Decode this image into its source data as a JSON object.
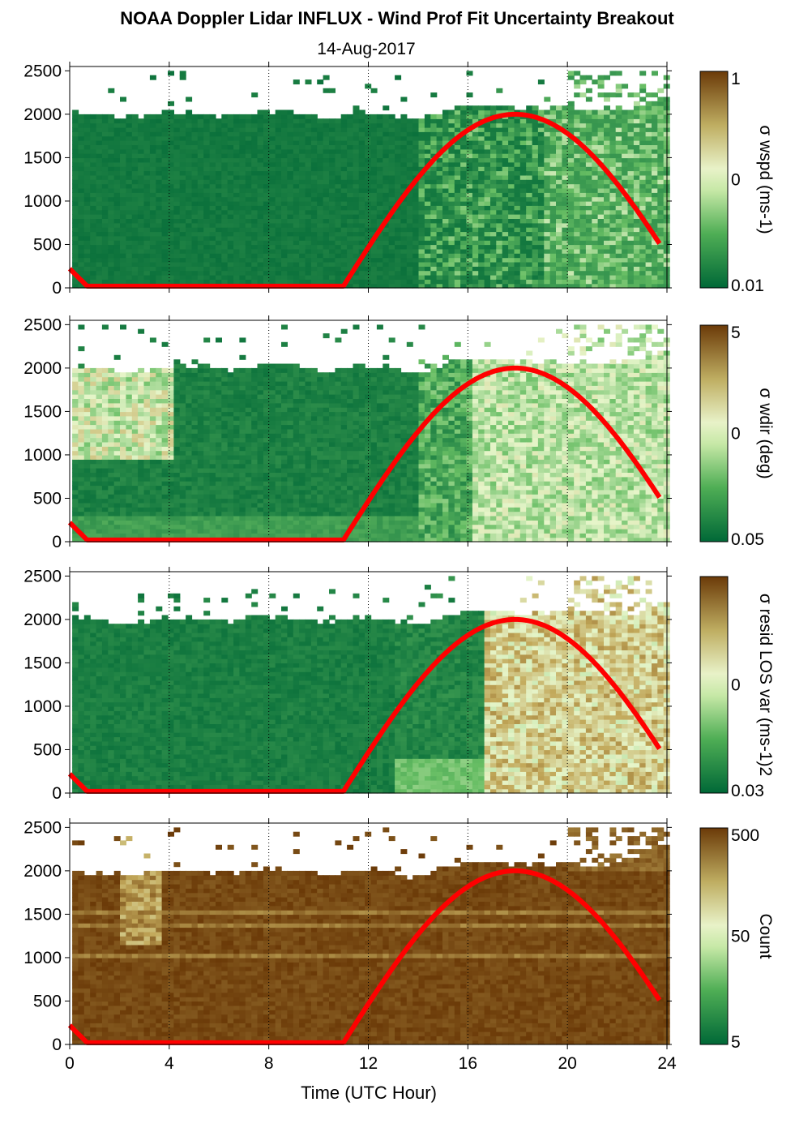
{
  "figure": {
    "title": "NOAA Doppler Lidar INFLUX - Wind Prof Fit Uncertainty Breakout",
    "subtitle": "14-Aug-2017",
    "xlabel": "Time (UTC Hour)"
  },
  "colors": {
    "low": "#006837",
    "mid_low": "#66bd63",
    "mid": "#e6f5c9",
    "mid_high": "#c2a85a",
    "high": "#6b3a08",
    "curve": "#ff0000"
  },
  "chart_data": [
    {
      "type": "heatmap",
      "xlabel": "Time (UTC Hour)",
      "ylabel": "",
      "xlim": [
        0,
        24
      ],
      "ylim": [
        0,
        2550
      ],
      "xticks": [
        0,
        4,
        8,
        12,
        16,
        20,
        24
      ],
      "yticks": [
        0,
        500,
        1000,
        1500,
        2000,
        2500
      ],
      "colorbar": {
        "label": "σ wspd (ms-1)",
        "ticks": [
          "1",
          "0",
          "0.01"
        ],
        "scale": "log"
      },
      "field": "sigma_wspd",
      "top_of_data_m": [
        2010,
        1960,
        1930,
        2000,
        1980,
        1960,
        2010,
        2000,
        1930,
        2000,
        1990,
        1900,
        2040,
        2080,
        2060,
        2040,
        2050,
        2030,
        2050,
        2200
      ],
      "curve": {
        "name": "",
        "peak_hour": 17.9,
        "peak_m": 2000,
        "night_m": 20,
        "start_m": 220
      },
      "pattern": "uniformly low (dark green) before ~14 UTC; mottled green with scattered higher values after ~16 UTC and above 2000 m"
    },
    {
      "type": "heatmap",
      "xlabel": "Time (UTC Hour)",
      "ylabel": "",
      "xlim": [
        0,
        24
      ],
      "ylim": [
        0,
        2550
      ],
      "xticks": [
        0,
        4,
        8,
        12,
        16,
        20,
        24
      ],
      "yticks": [
        0,
        500,
        1000,
        1500,
        2000,
        2500
      ],
      "colorbar": {
        "label": "σ wdir (deg)",
        "ticks": [
          "5",
          "0",
          "0.05"
        ],
        "scale": "log"
      },
      "field": "sigma_wdir",
      "top_of_data_m": [
        2010,
        1960,
        1930,
        2000,
        1980,
        1960,
        2010,
        2000,
        1930,
        2000,
        1990,
        1900,
        2040,
        2080,
        2060,
        2040,
        2050,
        2030,
        2050,
        2200
      ],
      "curve": {
        "name": "",
        "peak_hour": 17.9,
        "peak_m": 2000,
        "night_m": 20,
        "start_m": 220
      },
      "pattern": "elevated (light green/tan) 0-4 UTC near 1000-2000 m; low mid-day; light green to pale yellow 16-24 UTC"
    },
    {
      "type": "heatmap",
      "xlabel": "Time (UTC Hour)",
      "ylabel": "",
      "xlim": [
        0,
        24
      ],
      "ylim": [
        0,
        2550
      ],
      "xticks": [
        0,
        4,
        8,
        12,
        16,
        20,
        24
      ],
      "yticks": [
        0,
        500,
        1000,
        1500,
        2000,
        2500
      ],
      "colorbar": {
        "label": "σ resid LOS var (ms-1)2",
        "ticks": [
          "0",
          "0.03"
        ],
        "scale": "log"
      },
      "field": "sigma_resid_los_var",
      "top_of_data_m": [
        2010,
        1960,
        1930,
        2000,
        1980,
        1960,
        2010,
        2000,
        1930,
        2000,
        1990,
        1900,
        2040,
        2080,
        2060,
        2040,
        2050,
        2030,
        2050,
        2200
      ],
      "curve": {
        "name": "",
        "peak_hour": 17.9,
        "peak_m": 2000,
        "night_m": 20,
        "start_m": 220
      },
      "pattern": "low before ~14 UTC; large pale yellow / tan region (high) after ~16.5 UTC from surface to ~2000 m"
    },
    {
      "type": "heatmap",
      "xlabel": "Time (UTC Hour)",
      "ylabel": "",
      "xlim": [
        0,
        24
      ],
      "ylim": [
        0,
        2550
      ],
      "xticks": [
        0,
        4,
        8,
        12,
        16,
        20,
        24
      ],
      "yticks": [
        0,
        500,
        1000,
        1500,
        2000,
        2500
      ],
      "colorbar": {
        "label": "Count",
        "ticks": [
          "500",
          "50",
          "5"
        ],
        "scale": "log"
      },
      "field": "count",
      "top_of_data_m": [
        1960,
        1950,
        1930,
        1990,
        1960,
        1950,
        2000,
        1990,
        1930,
        1990,
        1980,
        1890,
        2030,
        2080,
        2060,
        2040,
        2050,
        2030,
        2150,
        2280
      ],
      "curve": {
        "name": "",
        "peak_hour": 17.9,
        "peak_m": 2000,
        "night_m": 20,
        "start_m": 220
      },
      "pattern": "mostly high counts (dark brown) below ~2000 m; lighter bands near 1000 m and 1500 m; lighter column ~2-3.5 UTC"
    }
  ]
}
